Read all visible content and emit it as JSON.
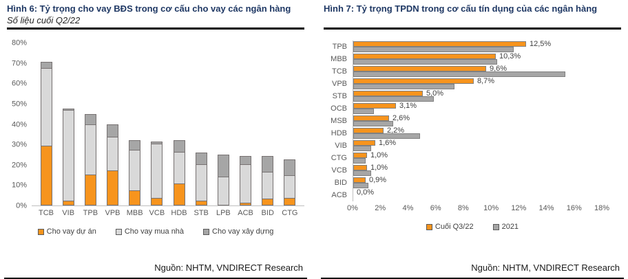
{
  "colors": {
    "orange": "#F7941D",
    "light_gray": "#D9D9D9",
    "dark_gray": "#A6A6A6",
    "bar_border": "#767171",
    "title_navy": "#1F3864",
    "axis_text": "#595959",
    "axis_line": "#BFBFBF"
  },
  "left_panel": {
    "title": "Hình 6: Tỷ trọng cho vay BĐS trong cơ cấu cho vay các ngân hàng",
    "subtitle": "Số liệu cuối Q2/22",
    "source": "Nguồn: NHTM, VNDIRECT Research"
  },
  "right_panel": {
    "title": "Hình 7: Tỷ trọng TPDN trong cơ cấu tín dụng của các ngân hàng",
    "source": "Nguồn: NHTM, VNDIRECT Research"
  },
  "chart_data": [
    {
      "type": "bar",
      "stacked": true,
      "orientation": "vertical",
      "title": "Hình 6: Tỷ trọng cho vay BĐS trong cơ cấu cho vay các ngân hàng",
      "subtitle": "Số liệu cuối Q2/22",
      "categories": [
        "TCB",
        "VIB",
        "TPB",
        "VPB",
        "MBB",
        "VCB",
        "HDB",
        "STB",
        "LPB",
        "ACB",
        "BID",
        "CTG"
      ],
      "series": [
        {
          "name": "Cho vay dự án",
          "color": "#F7941D",
          "values": [
            29,
            2,
            15,
            17,
            7,
            3.5,
            10.5,
            2,
            0,
            1,
            3,
            3.5
          ]
        },
        {
          "name": "Cho vay mua nhà",
          "color": "#D9D9D9",
          "values": [
            38,
            44.5,
            24.5,
            16.5,
            20,
            26.5,
            15.5,
            18,
            14,
            19,
            13,
            11
          ]
        },
        {
          "name": "Cho vay xây dựng",
          "color": "#A6A6A6",
          "values": [
            3.5,
            1,
            5.5,
            6.5,
            5,
            1.5,
            6,
            6,
            11,
            4.5,
            8,
            8
          ]
        }
      ],
      "y_tick_labels": [
        "80%",
        "70%",
        "60%",
        "50%",
        "40%",
        "30%",
        "20%",
        "10%",
        "0%"
      ],
      "ylim": [
        0,
        80
      ],
      "grid": false,
      "legend_position": "bottom"
    },
    {
      "type": "bar",
      "stacked": false,
      "orientation": "horizontal",
      "title": "Hình 7: Tỷ trọng TPDN trong cơ cấu tín dụng của các ngân hàng",
      "categories": [
        "TPB",
        "MBB",
        "TCB",
        "VPB",
        "STB",
        "OCB",
        "MSB",
        "HDB",
        "VIB",
        "CTG",
        "VCB",
        "BID",
        "ACB"
      ],
      "series": [
        {
          "name": "Cuối Q3/22",
          "color": "#F7941D",
          "values": [
            12.5,
            10.3,
            9.6,
            8.7,
            5.0,
            3.1,
            2.6,
            2.2,
            1.6,
            1.0,
            1.0,
            0.9,
            0.0
          ],
          "data_labels": [
            "12,5%",
            "10,3%",
            "9,6%",
            "8,7%",
            "5,0%",
            "3,1%",
            "2,6%",
            "2,2%",
            "1,6%",
            "1,0%",
            "1,0%",
            "0,9%",
            "0,0%"
          ]
        },
        {
          "name": "2021",
          "color": "#A6A6A6",
          "values": [
            11.6,
            10.4,
            15.3,
            7.3,
            5.8,
            1.5,
            2.9,
            4.8,
            1.3,
            0.9,
            1.3,
            1.1,
            0.0
          ]
        }
      ],
      "x_tick_labels": [
        "0%",
        "2%",
        "4%",
        "6%",
        "8%",
        "10%",
        "12%",
        "14%",
        "16%",
        "18%"
      ],
      "xlim": [
        0,
        18
      ],
      "grid": false,
      "legend_position": "bottom"
    }
  ]
}
